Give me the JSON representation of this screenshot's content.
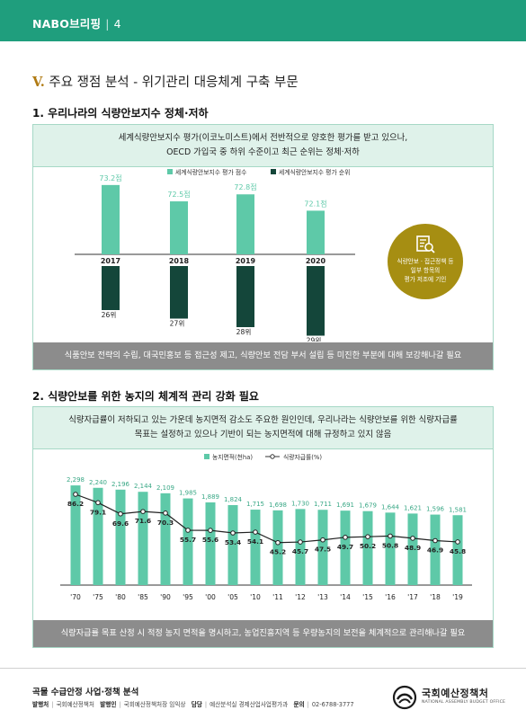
{
  "header": {
    "brand": "NABO브리핑",
    "separator": "|",
    "page": "4"
  },
  "section_title": {
    "roman": "V.",
    "text": "주요 쟁점 분석 - 위기관리 대응체계 구축 부문"
  },
  "part1": {
    "title": "1. 우리나라의 식량안보지수 정체·저하",
    "summary_line1": "세계식량안보지수 평가(이코노미스트)에서 전반적으로 양호한 평가를 받고 있으나,",
    "summary_line2": "OECD 가입국 중 하위 수준이고 최근 순위는 정체·저하",
    "badge_lines": [
      "식량안보 · 접근정책 등",
      "일부 항목의",
      "평가 저조에 기인"
    ],
    "footer": "식품안보 전략의 수립, 대국민홍보 등 접근성 제고, 식량안보 전담 부서 설립 등 미진한 부분에 대해 보강해나갈 필요"
  },
  "part2": {
    "title": "2. 식량안보를 위한 농지의 체계적 관리 강화 필요",
    "summary_line1": "식량자급률이 저하되고 있는 가운데 농지면적 감소도 주요한 원인인데, 우리나라는 식량안보를 위한 식량자급률",
    "summary_line2": "목표는 설정하고 있으나 기반이 되는 농지면적에 대해 규정하고 있지 않음",
    "footer": "식량자급률 목표 산정 시 적정 농지 면적을 명시하고, 농업진흥지역 등 우량농지의 보전을 체계적으로 관리해나갈 필요"
  },
  "chart_data": [
    {
      "type": "bar",
      "categories": [
        "2017",
        "2018",
        "2019",
        "2020"
      ],
      "series": [
        {
          "name": "세계식량안보지수 평가 점수",
          "values": [
            73.2,
            72.5,
            72.8,
            72.1
          ],
          "labels": [
            "73.2점",
            "72.5점",
            "72.8점",
            "72.1점"
          ],
          "color": "#5ec9a8"
        },
        {
          "name": "세계식량안보지수 평가 순위",
          "values": [
            26,
            27,
            28,
            29
          ],
          "labels": [
            "26위",
            "27위",
            "28위",
            "29위"
          ],
          "color": "#14463a"
        }
      ]
    },
    {
      "type": "bar",
      "categories": [
        "'70",
        "'75",
        "'80",
        "'85",
        "'90",
        "'95",
        "'00",
        "'05",
        "'10",
        "'11",
        "'12",
        "'13",
        "'14",
        "'15",
        "'16",
        "'17",
        "'18",
        "'19"
      ],
      "series": [
        {
          "name": "농지면적(천ha)",
          "type": "bar",
          "values": [
            2298,
            2240,
            2196,
            2144,
            2109,
            1985,
            1889,
            1824,
            1715,
            1698,
            1730,
            1711,
            1691,
            1679,
            1644,
            1621,
            1596,
            1581
          ],
          "labels": [
            "2,298",
            "2,240",
            "2,196",
            "2,144",
            "2,109",
            "1,985",
            "1,889",
            "1,824",
            "1,715",
            "1,698",
            "1,730",
            "1,711",
            "1,691",
            "1,679",
            "1,644",
            "1,621",
            "1,596",
            "1,581"
          ],
          "color": "#5ec9a8"
        },
        {
          "name": "식량자급률(%)",
          "type": "line",
          "values": [
            86.2,
            79.1,
            69.6,
            71.6,
            70.3,
            55.7,
            55.6,
            53.4,
            54.1,
            45.2,
            45.7,
            47.5,
            49.7,
            50.2,
            50.8,
            48.9,
            46.9,
            45.8
          ],
          "color": "#222222"
        }
      ]
    }
  ],
  "footer": {
    "title": "곡물 수급안정 사업·정책 분석",
    "issuer_label": "발행처",
    "issuer": "국회예산정책처",
    "publisher_label": "발행인",
    "publisher": "국회예산정책처장 임익상",
    "contact_label": "담당",
    "contact": "예산분석실 경제산업사업평가과",
    "phone_label": "문의",
    "phone": "02-6788-3777",
    "logo_name": "국회예산정책처",
    "logo_eng": "NATIONAL ASSEMBLY BUDGET OFFICE"
  },
  "colors": {
    "brand": "#1f9e7d",
    "bar_light": "#5ec9a8",
    "bar_dark": "#14463a",
    "badge": "#a68e12",
    "panel_head": "#dff2ea",
    "panel_foot": "#8c8c8c"
  },
  "icons": {
    "badge": "magnifier-report-icon",
    "logo": "national-assembly-emblem-icon"
  }
}
